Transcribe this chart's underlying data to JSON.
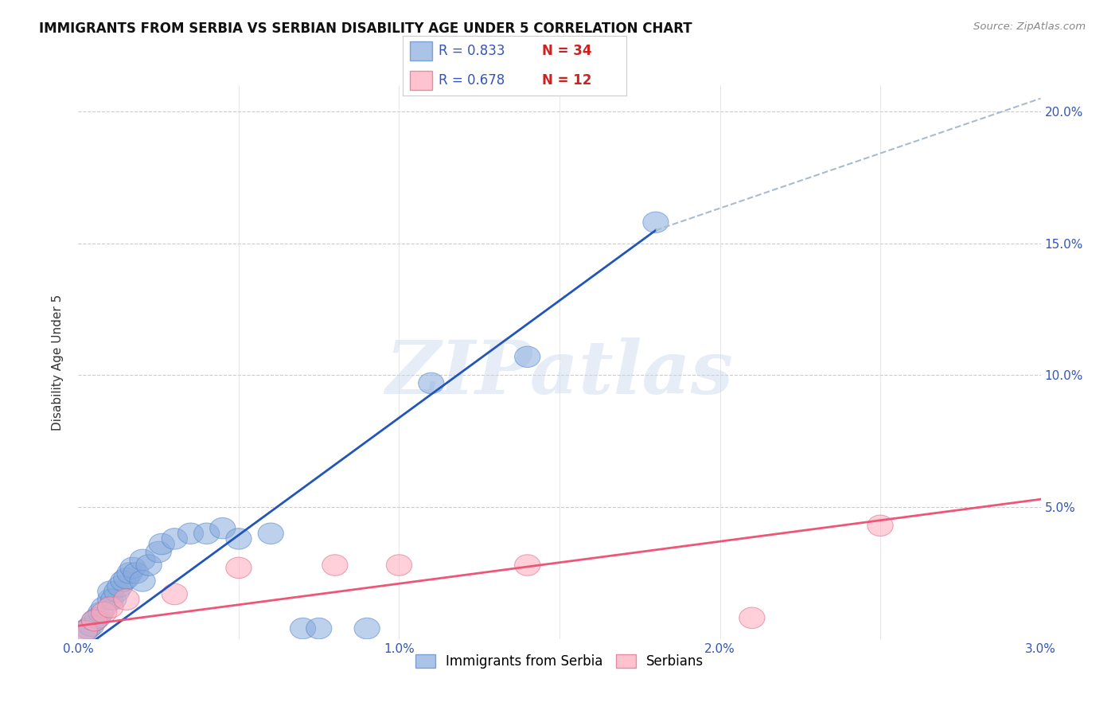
{
  "title": "IMMIGRANTS FROM SERBIA VS SERBIAN DISABILITY AGE UNDER 5 CORRELATION CHART",
  "source": "Source: ZipAtlas.com",
  "ylabel": "Disability Age Under 5",
  "xlim": [
    0.0,
    0.03
  ],
  "ylim": [
    0.0,
    0.21
  ],
  "xticks": [
    0.0,
    0.005,
    0.01,
    0.015,
    0.02,
    0.025,
    0.03
  ],
  "xticklabels": [
    "0.0%",
    "",
    "1.0%",
    "",
    "2.0%",
    "",
    "3.0%"
  ],
  "yticks_right": [
    0.0,
    0.05,
    0.1,
    0.15,
    0.2
  ],
  "yticklabels_right": [
    "",
    "5.0%",
    "10.0%",
    "15.0%",
    "20.0%"
  ],
  "background_color": "#ffffff",
  "grid_color": "#cccccc",
  "blue_color": "#88aadd",
  "pink_color": "#ffaabb",
  "blue_line_color": "#2255bb",
  "pink_line_color": "#ee5577",
  "dashed_line_color": "#aabbcc",
  "watermark": "ZIPatlas",
  "legend_R1": "R = 0.833",
  "legend_N1": "N = 34",
  "legend_R2": "R = 0.678",
  "legend_N2": "N = 12",
  "legend_label1": "Immigrants from Serbia",
  "legend_label2": "Serbians",
  "blue_scatter_x": [
    0.0002,
    0.0003,
    0.0004,
    0.0005,
    0.0006,
    0.0007,
    0.0008,
    0.001,
    0.001,
    0.0011,
    0.0012,
    0.0013,
    0.0014,
    0.0015,
    0.0016,
    0.0017,
    0.0018,
    0.002,
    0.002,
    0.0022,
    0.0025,
    0.0026,
    0.003,
    0.0035,
    0.004,
    0.0045,
    0.005,
    0.006,
    0.007,
    0.0075,
    0.009,
    0.011,
    0.014,
    0.018
  ],
  "blue_scatter_y": [
    0.003,
    0.004,
    0.005,
    0.007,
    0.008,
    0.01,
    0.012,
    0.015,
    0.018,
    0.015,
    0.018,
    0.02,
    0.022,
    0.023,
    0.025,
    0.027,
    0.025,
    0.022,
    0.03,
    0.028,
    0.033,
    0.036,
    0.038,
    0.04,
    0.04,
    0.042,
    0.038,
    0.04,
    0.004,
    0.004,
    0.004,
    0.097,
    0.107,
    0.158
  ],
  "pink_scatter_x": [
    0.0002,
    0.0005,
    0.0008,
    0.001,
    0.0015,
    0.003,
    0.005,
    0.008,
    0.01,
    0.014,
    0.021,
    0.025
  ],
  "pink_scatter_y": [
    0.003,
    0.007,
    0.01,
    0.012,
    0.015,
    0.017,
    0.027,
    0.028,
    0.028,
    0.028,
    0.008,
    0.043
  ],
  "blue_line_x": [
    0.0,
    0.018
  ],
  "blue_line_y": [
    -0.005,
    0.155
  ],
  "pink_line_x": [
    0.0,
    0.03
  ],
  "pink_line_y": [
    0.005,
    0.053
  ],
  "dashed_line_x": [
    0.018,
    0.03
  ],
  "dashed_line_y": [
    0.155,
    0.205
  ]
}
